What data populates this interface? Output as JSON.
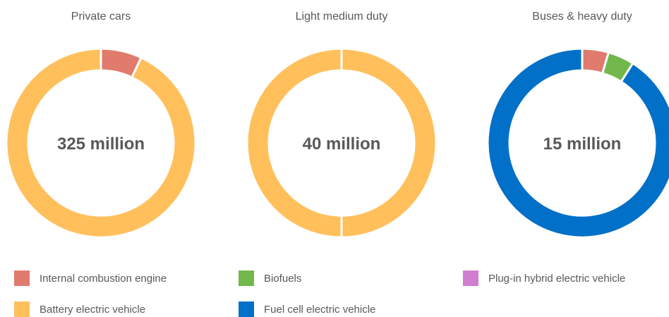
{
  "chart_data": [
    {
      "type": "donut",
      "title": "Private cars",
      "center_label": "325 million",
      "slices": [
        {
          "name": "Internal combustion engine",
          "value": 7,
          "color": "#E07B6E"
        },
        {
          "name": "Battery electric vehicle",
          "value": 93,
          "color": "#FFC05C"
        }
      ]
    },
    {
      "type": "donut",
      "title": "Light medium  duty",
      "center_label": "40 million",
      "slices": [
        {
          "name": "Battery electric vehicle",
          "value": 100,
          "color": "#FFC05C"
        }
      ]
    },
    {
      "type": "donut",
      "title": "Buses & heavy duty",
      "center_label": "15 million",
      "slices": [
        {
          "name": "Internal combustion engine",
          "value": 4.5,
          "color": "#E07B6E"
        },
        {
          "name": "Biofuels",
          "value": 4.5,
          "color": "#72B84C"
        },
        {
          "name": "Fuel cell electric vehicle",
          "value": 91,
          "color": "#0070C9"
        }
      ]
    }
  ],
  "legend": [
    {
      "label": "Internal combustion engine",
      "color": "#E07B6E"
    },
    {
      "label": "Battery electric vehicle",
      "color": "#FFC05C"
    },
    {
      "label": "Biofuels",
      "color": "#72B84C"
    },
    {
      "label": "Fuel cell electric vehicle",
      "color": "#0070C9"
    },
    {
      "label": "Plug-in hybrid electric vehicle",
      "color": "#D17ED1"
    }
  ]
}
